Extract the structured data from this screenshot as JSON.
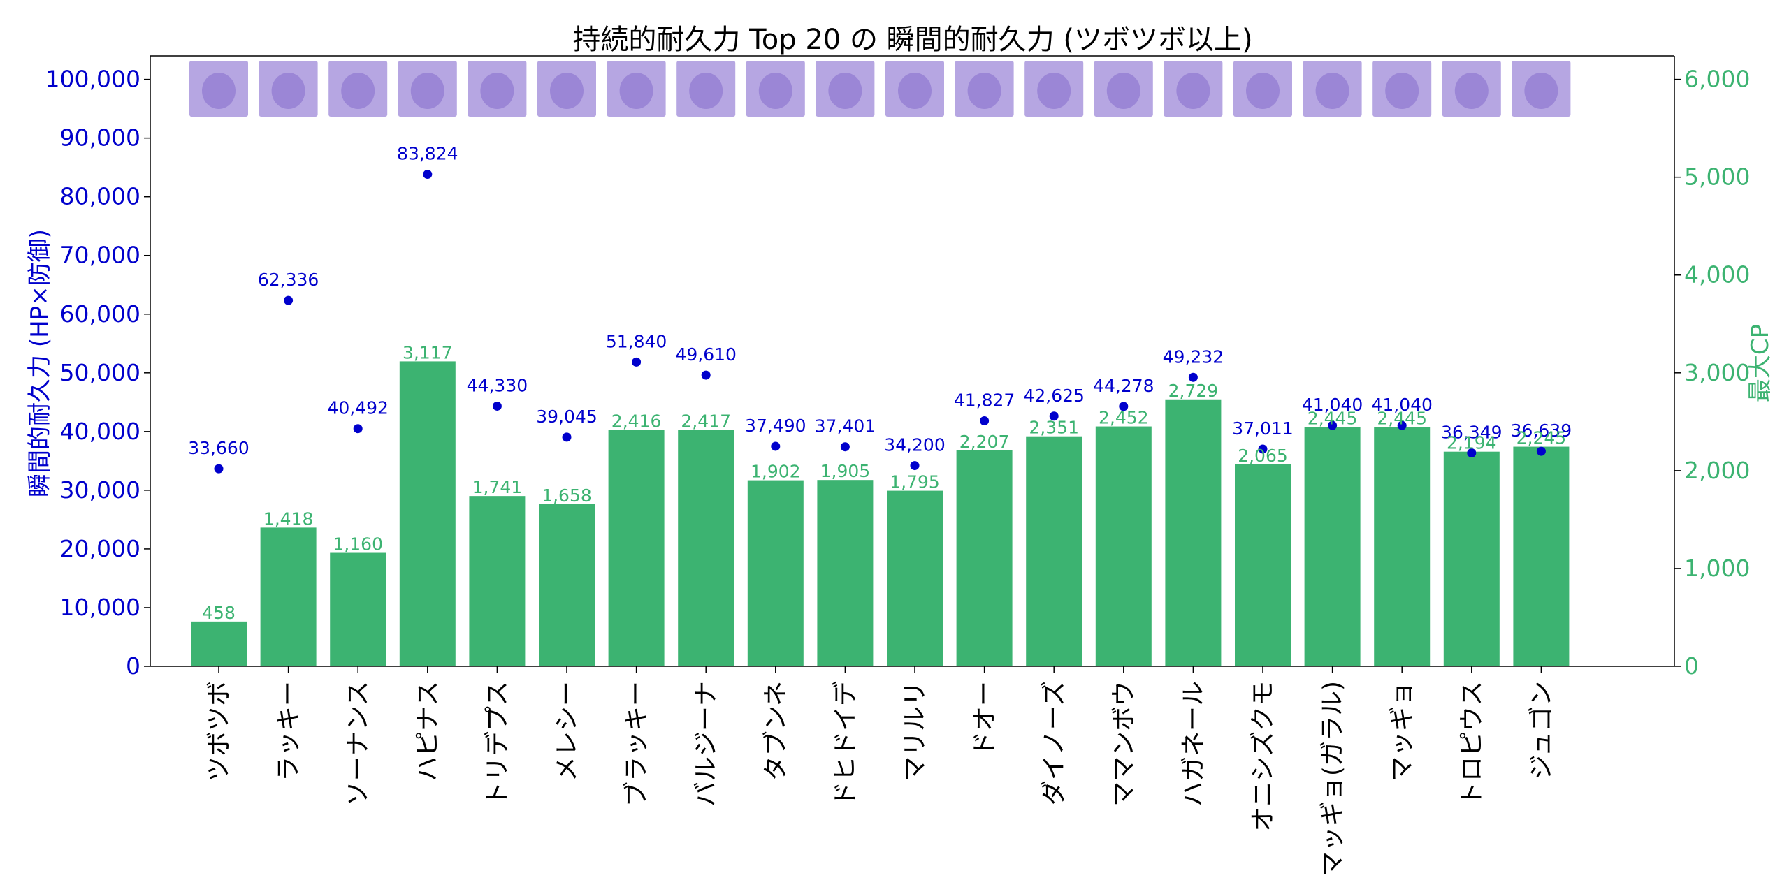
{
  "chart_data": {
    "type": "bar",
    "title": "持続的耐久力 Top 20 の 瞬間的耐久力 (ツボツボ以上)",
    "ylabel_left": "瞬間的耐久力 (HP×防御)",
    "ylabel_right": "最大CP",
    "ylim_left": [
      0,
      104000
    ],
    "ylim_right": [
      0,
      6240
    ],
    "yticks_left": [
      "0",
      "10,000",
      "20,000",
      "30,000",
      "40,000",
      "50,000",
      "60,000",
      "70,000",
      "80,000",
      "90,000",
      "100,000"
    ],
    "yticks_right": [
      "0",
      "1,000",
      "2,000",
      "3,000",
      "4,000",
      "5,000",
      "6,000"
    ],
    "categories": [
      "ツボツボ",
      "ラッキー",
      "ソーナンス",
      "ハピナス",
      "トリデプス",
      "メレシー",
      "ブラッキー",
      "バルジーナ",
      "タブンネ",
      "ドヒドイデ",
      "マリルリ",
      "ドオー",
      "ダイノーズ",
      "ママンボウ",
      "ハガネール",
      "オニシズクモ",
      "マッギョ(ガラル)",
      "マッギョ",
      "トロピウス",
      "ジュゴン"
    ],
    "series": [
      {
        "name": "最大CP",
        "kind": "bar",
        "axis": "right",
        "color": "#3cb371",
        "values": [
          458,
          1418,
          1160,
          3117,
          1741,
          1658,
          2416,
          2417,
          1902,
          1905,
          1795,
          2207,
          2351,
          2452,
          2729,
          2065,
          2445,
          2445,
          2194,
          2245
        ],
        "labels": [
          "458",
          "1,418",
          "1,160",
          "3,117",
          "1,741",
          "1,658",
          "2,416",
          "2,417",
          "1,902",
          "1,905",
          "1,795",
          "2,207",
          "2,351",
          "2,452",
          "2,729",
          "2,065",
          "2,445",
          "2,445",
          "2,194",
          "2,245"
        ]
      },
      {
        "name": "瞬間的耐久力 (HP×防御)",
        "kind": "scatter",
        "axis": "left",
        "color": "#0000cc",
        "values": [
          33660,
          62336,
          40492,
          83824,
          44330,
          39045,
          51840,
          49610,
          37490,
          37401,
          34200,
          41827,
          42625,
          44278,
          49232,
          37011,
          41040,
          41040,
          36349,
          36639
        ],
        "labels": [
          "33,660",
          "62,336",
          "40,492",
          "83,824",
          "44,330",
          "39,045",
          "51,840",
          "49,610",
          "37,490",
          "37,401",
          "34,200",
          "41,827",
          "42,625",
          "44,278",
          "49,232",
          "37,011",
          "41,040",
          "41,040",
          "36,349",
          "36,639"
        ]
      }
    ],
    "images": [
      "shuckle",
      "chansey",
      "wobbuffet",
      "blissey",
      "bastiodon",
      "carbink",
      "umbreon",
      "mandibuzz",
      "audino",
      "toxapex",
      "azumarill",
      "quagsire",
      "probopass",
      "alomomola",
      "steelix",
      "araquanid",
      "galarian-stunfisk",
      "stunfisk",
      "tropius",
      "dewgong"
    ],
    "grid": false,
    "legend": "none"
  }
}
